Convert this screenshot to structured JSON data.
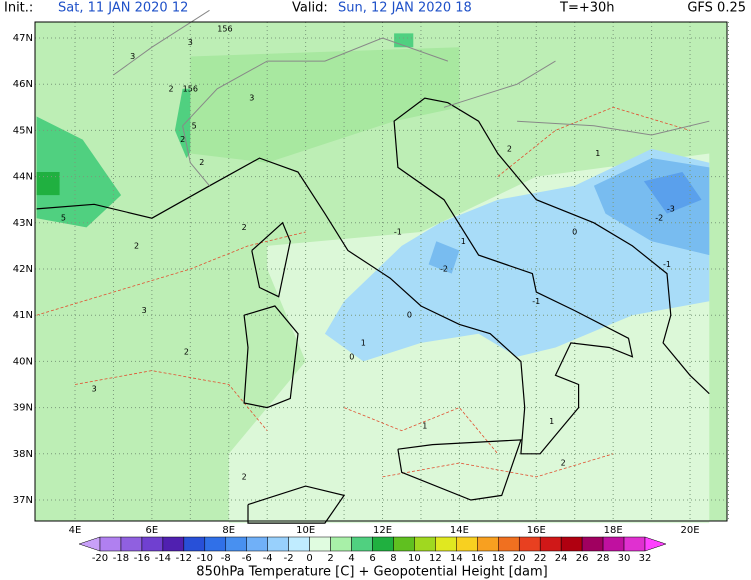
{
  "header": {
    "init_label": "Init.:",
    "init_time": "Sat, 11 JAN 2020  12",
    "valid_label": "Valid:",
    "valid_time": "Sun, 12 JAN 2020  18",
    "lead": "T=+30h",
    "model": "GFS 0.25"
  },
  "lat_labels": [
    "47N",
    "46N",
    "45N",
    "44N",
    "43N",
    "42N",
    "41N",
    "40N",
    "39N",
    "38N",
    "37N"
  ],
  "lon_labels": [
    "4E",
    "6E",
    "8E",
    "10E",
    "12E",
    "14E",
    "16E",
    "18E",
    "20E"
  ],
  "contour_labels": [
    "3",
    "3",
    "2",
    "156",
    "156",
    "5",
    "2",
    "3",
    "2",
    "5",
    "2",
    "3",
    "2",
    "1",
    "0",
    "-1",
    "-2",
    "-1",
    "0",
    "-1",
    "-2",
    "-3",
    "1",
    "2",
    "1",
    "0",
    "1",
    "2",
    "3",
    "2",
    "1",
    "2"
  ],
  "colorbar": {
    "labels": [
      -20,
      -18,
      -16,
      -14,
      -12,
      -10,
      -8,
      -6,
      -4,
      -2,
      0,
      2,
      4,
      6,
      8,
      10,
      12,
      14,
      16,
      18,
      20,
      22,
      24,
      26,
      28,
      30,
      32
    ]
  },
  "caption": "850hPa Temperature [C] + Geopotential Height [dam]"
}
